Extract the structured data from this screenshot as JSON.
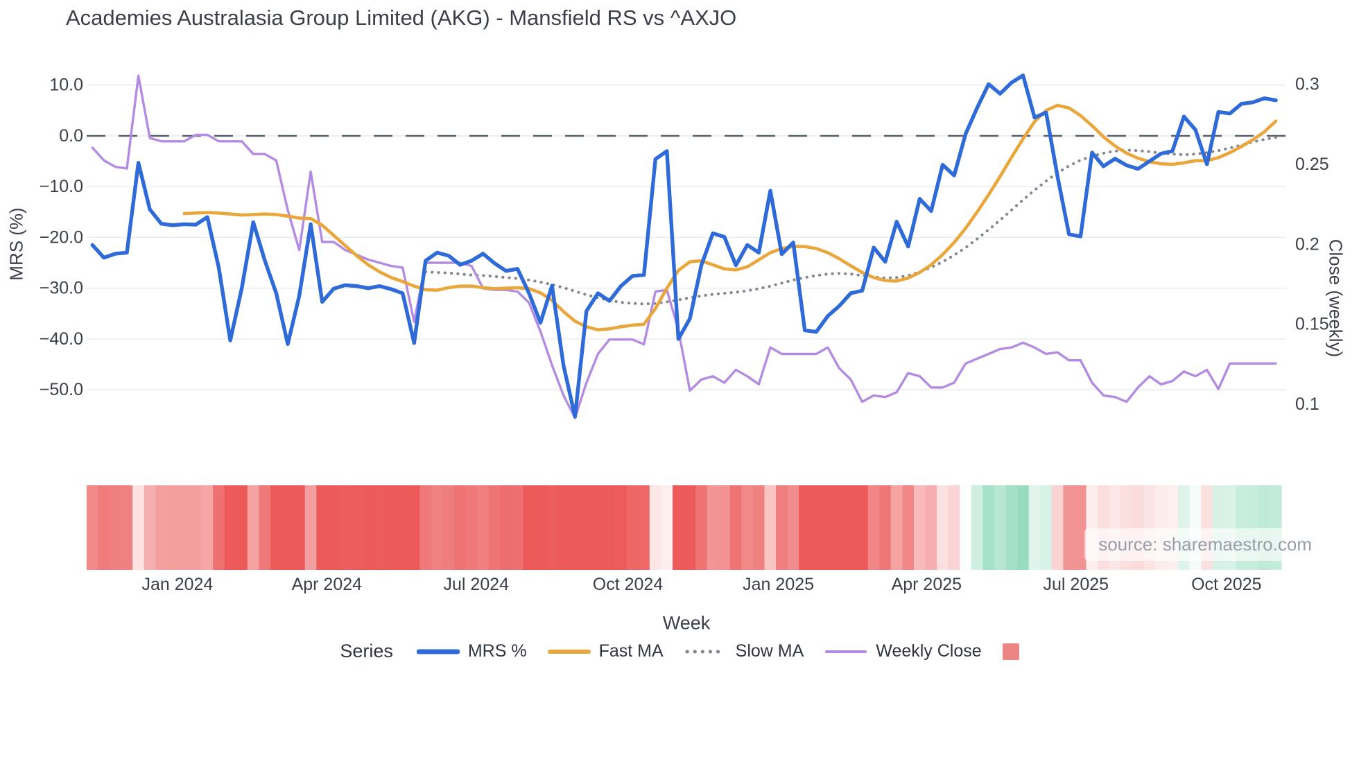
{
  "page": {
    "watermark": "source: sharemaestro.com"
  },
  "chart_data": {
    "type": "line",
    "title": "Academies Australasia Group Limited (AKG) - Mansfield RS vs ^AXJO",
    "xlabel": "Week",
    "ylabel_left": "MRS (%)",
    "ylabel_right": "Close (weekly)",
    "legend_title": "Series",
    "grid": "horizontal-only",
    "legend_position": "bottom-center",
    "n_points": 104,
    "x_unit": "weekly index, Nov 2023 - Nov 2025",
    "x_ticks": [
      {
        "label": "Jan 2024",
        "week": 7.4
      },
      {
        "label": "Apr 2024",
        "week": 20.4
      },
      {
        "label": "Jul 2024",
        "week": 33.4
      },
      {
        "label": "Oct 2024",
        "week": 46.6
      },
      {
        "label": "Jan 2025",
        "week": 59.7
      },
      {
        "label": "Apr 2025",
        "week": 72.6
      },
      {
        "label": "Jul 2025",
        "week": 85.6
      },
      {
        "label": "Oct 2025",
        "week": 98.7
      }
    ],
    "left_axis": {
      "range": [
        -57.9,
        15.15
      ],
      "tick_values": [
        10,
        0,
        -10,
        -20,
        -30,
        -40,
        -50
      ],
      "tick_labels": [
        "10.0",
        "0.0",
        "−10.0",
        "−20.0",
        "−30.0",
        "−40.0",
        "−50.0"
      ]
    },
    "right_axis": {
      "range": [
        0.0835,
        0.3155
      ],
      "tick_values": [
        0.3,
        0.25,
        0.2,
        0.15,
        0.1
      ],
      "tick_labels": [
        "0.3",
        "0.25",
        "0.2",
        "0.15",
        "0.1"
      ]
    },
    "zero_line_value": 0,
    "zero_line_color": "#555d6d",
    "grid_color": "#e9ecf2",
    "text_color": "#3a3f4a",
    "series": [
      {
        "name": "MRS %",
        "axis": "left",
        "color": "#2e6ad8",
        "style": "solid",
        "width": 5.4,
        "start_week": 0,
        "values": [
          -21.5,
          -24.0,
          -23.2,
          -23.0,
          -5.3,
          -14.5,
          -17.3,
          -17.6,
          -17.4,
          -17.5,
          -16.0,
          -26.0,
          -40.3,
          -30.0,
          -17.0,
          -24.5,
          -31.0,
          -41.0,
          -31.5,
          -17.4,
          -32.7,
          -30.1,
          -29.4,
          -29.6,
          -30.0,
          -29.6,
          -30.2,
          -31.0,
          -40.8,
          -24.6,
          -23.0,
          -23.6,
          -25.4,
          -24.6,
          -23.2,
          -25.1,
          -26.6,
          -26.2,
          -31.0,
          -36.8,
          -29.5,
          -45.2,
          -55.3,
          -34.5,
          -31.0,
          -32.5,
          -29.6,
          -27.6,
          -27.4,
          -4.6,
          -3.0,
          -40.0,
          -36.0,
          -25.5,
          -19.2,
          -19.9,
          -25.5,
          -21.5,
          -23.0,
          -10.8,
          -23.3,
          -21.0,
          -38.3,
          -38.6,
          -35.5,
          -33.5,
          -31.0,
          -30.5,
          -22.0,
          -24.8,
          -16.9,
          -21.8,
          -12.4,
          -14.8,
          -5.7,
          -7.8,
          0.4,
          5.5,
          10.2,
          8.3,
          10.5,
          11.9,
          3.6,
          4.6,
          -8.0,
          -19.4,
          -19.8,
          -3.3,
          -6.0,
          -4.5,
          -5.8,
          -6.5,
          -5.0,
          -3.5,
          -3.0,
          3.8,
          1.2,
          -5.6,
          4.7,
          4.4,
          6.3,
          6.6,
          7.4,
          7.0
        ]
      },
      {
        "name": "Fast MA",
        "axis": "left",
        "color": "#e9a63b",
        "style": "solid",
        "width": 4.6,
        "start_week": 8,
        "values": [
          -15.3,
          -15.2,
          -15.1,
          -15.2,
          -15.4,
          -15.6,
          -15.5,
          -15.4,
          -15.5,
          -15.8,
          -16.2,
          -16.3,
          -17.6,
          -19.6,
          -21.6,
          -23.6,
          -25.4,
          -26.8,
          -27.9,
          -28.7,
          -29.6,
          -30.3,
          -30.4,
          -29.9,
          -29.6,
          -29.6,
          -29.9,
          -30.1,
          -30.0,
          -29.9,
          -30.1,
          -30.9,
          -32.4,
          -34.6,
          -36.5,
          -37.6,
          -38.2,
          -38.0,
          -37.6,
          -37.3,
          -37.1,
          -34.0,
          -30.0,
          -26.5,
          -24.8,
          -24.6,
          -25.4,
          -26.2,
          -26.4,
          -25.8,
          -24.4,
          -23.0,
          -22.2,
          -21.8,
          -21.8,
          -22.2,
          -23.0,
          -24.2,
          -25.6,
          -26.9,
          -27.9,
          -28.5,
          -28.6,
          -28.0,
          -26.9,
          -25.4,
          -23.4,
          -21.0,
          -18.2,
          -15.0,
          -11.6,
          -8.0,
          -4.2,
          -0.6,
          2.8,
          5.0,
          6.0,
          5.5,
          4.0,
          2.0,
          -0.2,
          -2.0,
          -3.4,
          -4.4,
          -5.1,
          -5.5,
          -5.6,
          -5.3,
          -4.9,
          -4.9,
          -4.3,
          -3.3,
          -2.1,
          -0.8,
          0.8,
          2.9
        ]
      },
      {
        "name": "Slow MA",
        "axis": "left",
        "color": "#81868f",
        "style": "dotted",
        "width": 4,
        "start_week": 29,
        "values": [
          -26.8,
          -26.9,
          -27.0,
          -27.2,
          -27.4,
          -27.5,
          -27.7,
          -27.9,
          -28.1,
          -28.4,
          -28.8,
          -29.3,
          -29.9,
          -30.6,
          -31.3,
          -31.9,
          -32.4,
          -32.8,
          -33.0,
          -33.1,
          -33.0,
          -32.7,
          -32.3,
          -31.9,
          -31.5,
          -31.2,
          -31.0,
          -30.8,
          -30.5,
          -30.1,
          -29.6,
          -29.0,
          -28.4,
          -27.9,
          -27.5,
          -27.2,
          -27.1,
          -27.2,
          -27.5,
          -27.8,
          -28.0,
          -27.9,
          -27.5,
          -26.8,
          -25.9,
          -24.8,
          -23.5,
          -22.0,
          -20.3,
          -18.5,
          -16.6,
          -14.6,
          -12.6,
          -10.7,
          -8.9,
          -7.3,
          -5.9,
          -4.8,
          -4.0,
          -3.4,
          -3.0,
          -2.8,
          -2.9,
          -3.1,
          -3.4,
          -3.6,
          -3.7,
          -3.6,
          -3.3,
          -2.9,
          -2.4,
          -1.8,
          -1.2,
          -0.7,
          -0.3
        ]
      },
      {
        "name": "Weekly Close",
        "axis": "right",
        "color": "#b38be2",
        "style": "solid",
        "width": 3.4,
        "start_week": 0,
        "values": [
          0.26,
          0.252,
          0.248,
          0.247,
          0.305,
          0.266,
          0.264,
          0.264,
          0.264,
          0.268,
          0.268,
          0.264,
          0.264,
          0.264,
          0.256,
          0.256,
          0.252,
          0.221,
          0.196,
          0.245,
          0.201,
          0.201,
          0.196,
          0.193,
          0.19,
          0.188,
          0.186,
          0.185,
          0.151,
          0.188,
          0.188,
          0.188,
          0.188,
          0.186,
          0.172,
          0.171,
          0.171,
          0.17,
          0.163,
          0.145,
          0.124,
          0.105,
          0.091,
          0.113,
          0.131,
          0.14,
          0.14,
          0.14,
          0.137,
          0.17,
          0.171,
          0.146,
          0.108,
          0.115,
          0.117,
          0.113,
          0.121,
          0.117,
          0.112,
          0.135,
          0.131,
          0.131,
          0.131,
          0.131,
          0.135,
          0.122,
          0.115,
          0.101,
          0.105,
          0.104,
          0.107,
          0.119,
          0.117,
          0.11,
          0.11,
          0.113,
          0.125,
          0.128,
          0.131,
          0.134,
          0.135,
          0.138,
          0.135,
          0.131,
          0.132,
          0.127,
          0.127,
          0.113,
          0.105,
          0.104,
          0.101,
          0.11,
          0.117,
          0.112,
          0.114,
          0.12,
          0.117,
          0.121,
          0.109,
          0.125,
          0.125,
          0.125,
          0.125,
          0.125
        ]
      }
    ],
    "heatmap": {
      "maps_series": "MRS %",
      "description": "weekly strip colored by MRS % sign and magnitude",
      "neg_color": "#ec5a5a",
      "pos_color": "#8ed9ba",
      "neutral_color": "#ffffff",
      "neg_full_at": -30,
      "pos_full_at": 13,
      "legend_swatch_color": "#ee8585"
    }
  }
}
